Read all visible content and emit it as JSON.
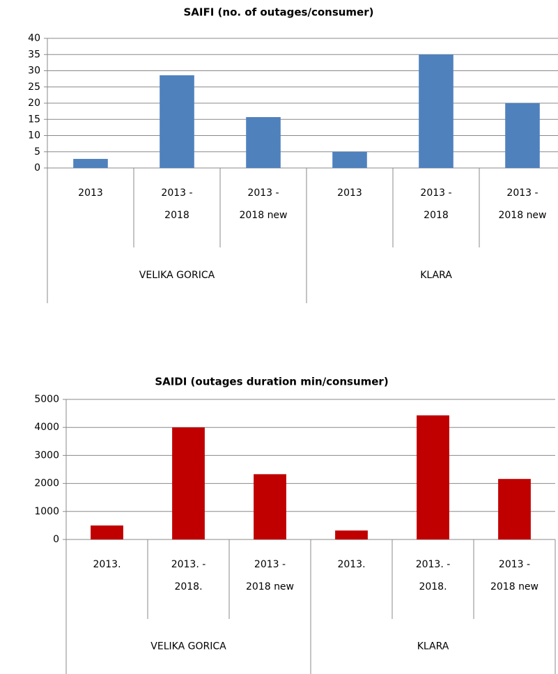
{
  "chart_data": [
    {
      "type": "bar",
      "title": "SAIFI (no. of outages/consumer)",
      "categories": [
        "2013",
        "2013 - 2018",
        "2013 - 2018 new",
        "2013",
        "2013 - 2018",
        "2013 - 2018 new"
      ],
      "groups": [
        "VELIKA GORICA",
        "KLARA"
      ],
      "values": [
        2.8,
        28.6,
        15.7,
        5,
        35,
        20
      ],
      "color": "#4f81bd",
      "ylim": [
        0,
        40
      ],
      "yticks": [
        0,
        5,
        10,
        15,
        20,
        25,
        30,
        35,
        40
      ],
      "grid": true
    },
    {
      "type": "bar",
      "title": "SAIDI (outages duration min/consumer)",
      "categories": [
        "2013.",
        "2013. - 2018.",
        "2013 - 2018 new",
        "2013.",
        "2013. - 2018.",
        "2013 - 2018 new"
      ],
      "groups": [
        "VELIKA GORICA",
        "KLARA"
      ],
      "values": [
        500,
        4000,
        2330,
        320,
        4430,
        2160
      ],
      "color": "#c00000",
      "ylim": [
        0,
        5000
      ],
      "yticks": [
        0,
        1000,
        2000,
        3000,
        4000,
        5000
      ],
      "grid": true
    }
  ]
}
